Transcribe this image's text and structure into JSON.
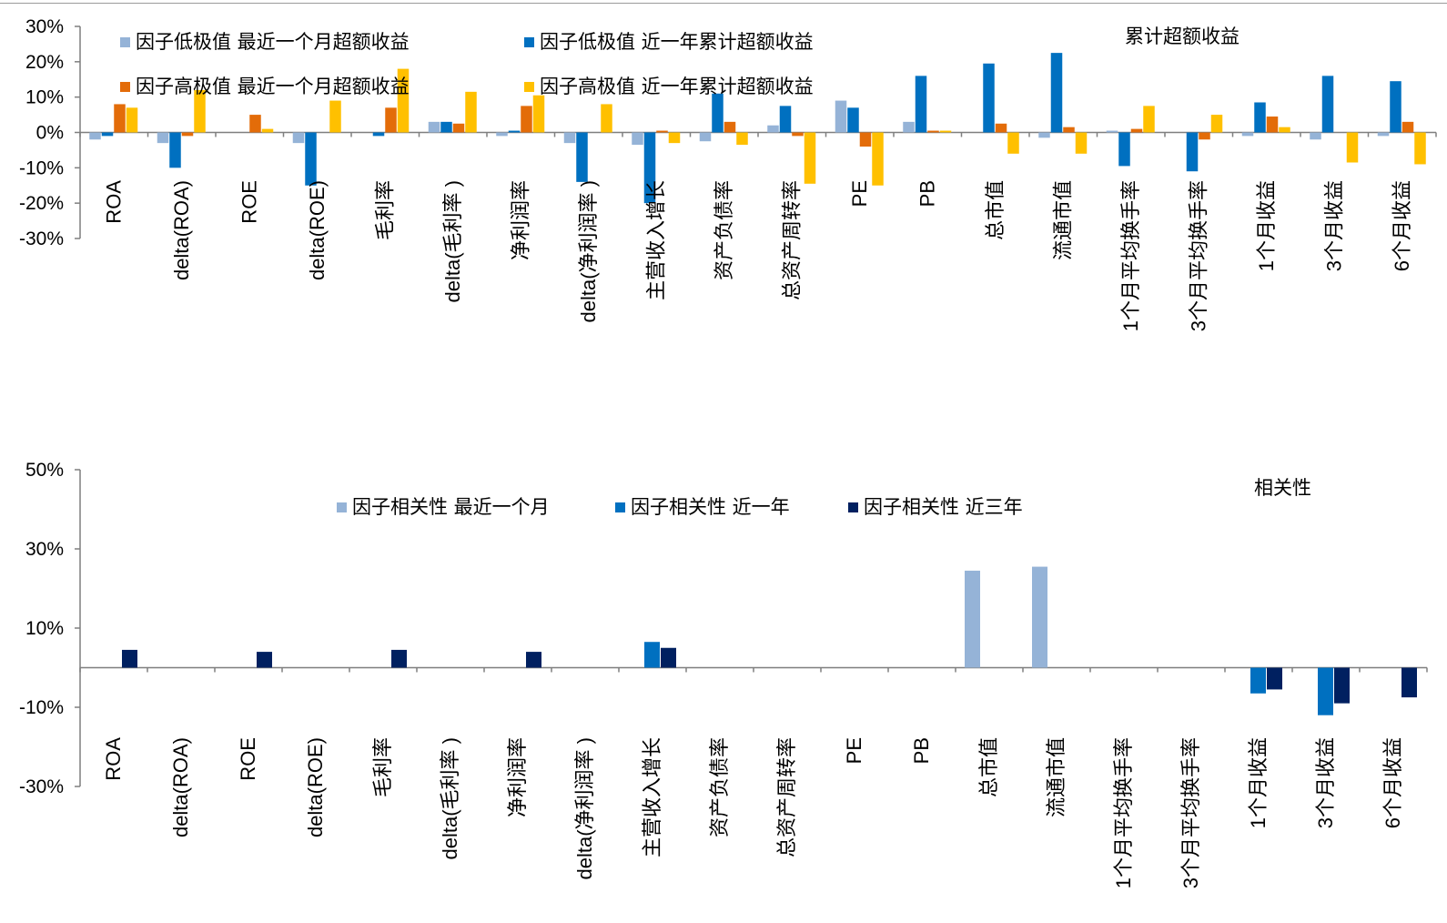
{
  "chart_data": [
    {
      "type": "bar",
      "title": "累计超额收益",
      "ylim": [
        -30,
        30
      ],
      "yticks": [
        -30,
        -20,
        -10,
        0,
        10,
        20,
        30
      ],
      "ytick_labels": [
        "-30%",
        "-20%",
        "-10%",
        "0%",
        "10%",
        "20%",
        "30%"
      ],
      "categories": [
        "ROA",
        "delta(ROA)",
        "ROE",
        "delta(ROE)",
        "毛利率",
        "delta(毛利率 )",
        "净利润率",
        "delta(净利润率 )",
        "主营收入增长",
        "资产负债率",
        "总资产周转率",
        "PE",
        "PB",
        "总市值",
        "流通市值",
        "1个月平均换手率",
        "3个月平均换手率",
        "1个月收益",
        "3个月收益",
        "6个月收益"
      ],
      "series": [
        {
          "name": "因子低极值 最近一个月超额收益",
          "color": "#95b3d7",
          "values": [
            -2,
            -3,
            0,
            -3,
            0,
            3,
            -1,
            -3,
            -3.5,
            -2.5,
            2,
            9,
            3,
            0,
            -1.5,
            0.5,
            0,
            -1,
            -2,
            -1
          ]
        },
        {
          "name": "因子低极值 近一年累计超额收益",
          "color": "#0070c0",
          "values": [
            -1,
            -10,
            0,
            -15,
            -1,
            3,
            0.5,
            -14,
            -20,
            11,
            7.5,
            7,
            16,
            19.5,
            22.5,
            -9.5,
            -11,
            8.5,
            16,
            14.5
          ]
        },
        {
          "name": "因子高极值 最近一个月超额收益",
          "color": "#e36c09",
          "values": [
            8,
            -1,
            5,
            0,
            7,
            2.5,
            7.5,
            0,
            0.5,
            3,
            -1,
            -4,
            0.5,
            2.5,
            1.5,
            1,
            -2,
            4.5,
            0,
            3
          ]
        },
        {
          "name": "因子高极值 近一年累计超额收益",
          "color": "#ffc000",
          "values": [
            7,
            12,
            1,
            9,
            18,
            11.5,
            10.5,
            8,
            -3,
            -3.5,
            -14.5,
            -15,
            0.5,
            -6,
            -6,
            7.5,
            5,
            1.5,
            -8.5,
            -9
          ]
        }
      ]
    },
    {
      "type": "bar",
      "title": "相关性",
      "ylim": [
        -30,
        50
      ],
      "yticks": [
        -30,
        -10,
        10,
        30,
        50
      ],
      "ytick_labels": [
        "-30%",
        "-10%",
        "10%",
        "30%",
        "50%"
      ],
      "categories": [
        "ROA",
        "delta(ROA)",
        "ROE",
        "delta(ROE)",
        "毛利率",
        "delta(毛利率 )",
        "净利润率",
        "delta(净利润率 )",
        "主营收入增长",
        "资产负债率",
        "总资产周转率",
        "PE",
        "PB",
        "总市值",
        "流通市值",
        "1个月平均换手率",
        "3个月平均换手率",
        "1个月收益",
        "3个月收益",
        "6个月收益"
      ],
      "series": [
        {
          "name": "因子相关性 最近一个月",
          "color": "#95b3d7",
          "values": [
            0,
            0,
            0,
            0,
            0,
            0,
            0,
            0,
            0,
            0,
            0,
            0,
            0,
            24.5,
            25.5,
            0,
            0,
            0,
            0,
            0
          ]
        },
        {
          "name": "因子相关性 近一年",
          "color": "#0070c0",
          "values": [
            0,
            0,
            0,
            0,
            0,
            0,
            0,
            0,
            6.5,
            0,
            0,
            0,
            0,
            0,
            0,
            0,
            0,
            -6.5,
            -12,
            0
          ]
        },
        {
          "name": "因子相关性 近三年",
          "color": "#002060",
          "values": [
            4.5,
            0,
            4,
            0,
            4.5,
            0,
            4,
            0,
            5,
            0,
            0,
            0,
            0,
            0,
            0,
            0,
            0,
            -5.5,
            -9,
            -7.5
          ]
        }
      ]
    }
  ]
}
